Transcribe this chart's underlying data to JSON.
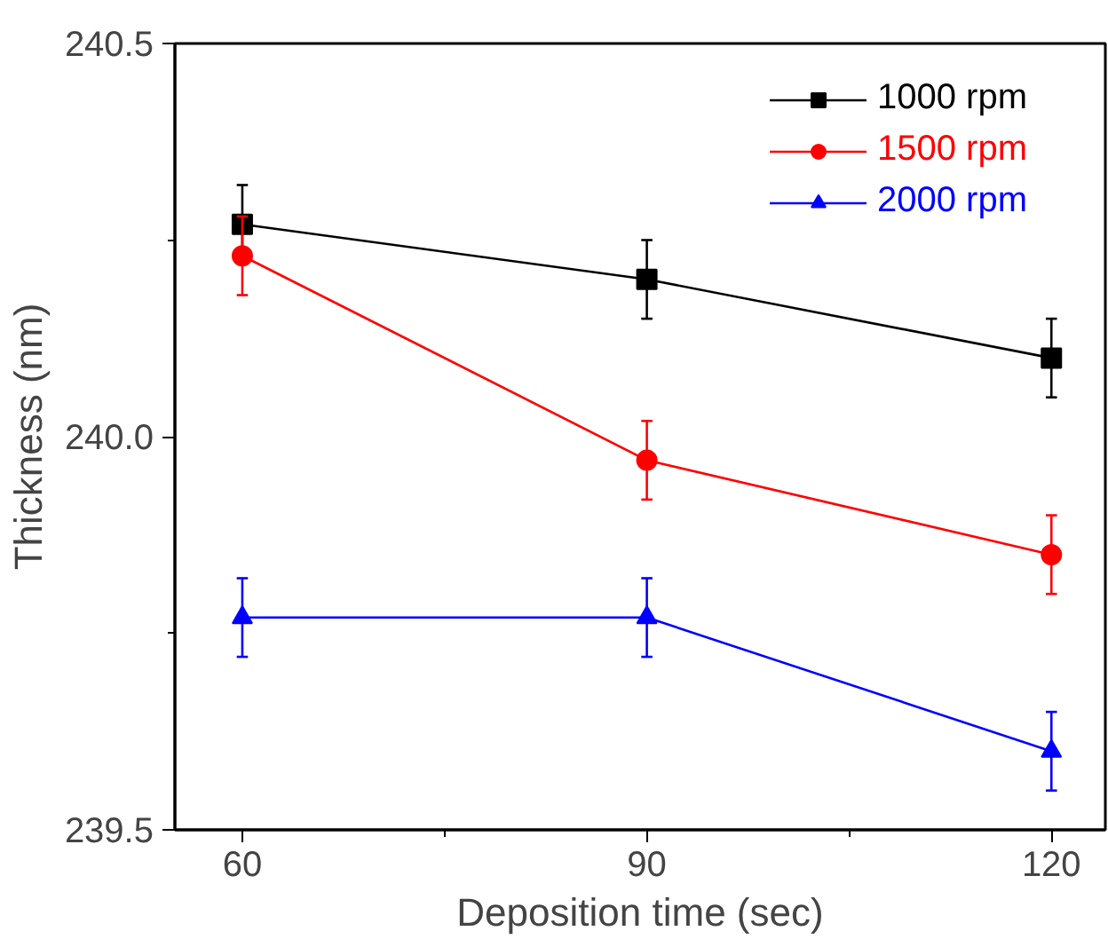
{
  "chart_data": {
    "type": "line",
    "xlabel": "Deposition time (sec)",
    "ylabel": "Thickness (nm)",
    "x": [
      60,
      90,
      120
    ],
    "series": [
      {
        "name": "1000 rpm",
        "color": "#000000",
        "marker": "square",
        "values": [
          240.27,
          240.2,
          240.1
        ],
        "errors": [
          0.05,
          0.05,
          0.05
        ]
      },
      {
        "name": "1500 rpm",
        "color": "#ff0000",
        "marker": "circle",
        "values": [
          240.23,
          239.97,
          239.85
        ],
        "errors": [
          0.05,
          0.05,
          0.05
        ]
      },
      {
        "name": "2000 rpm",
        "color": "#0000ff",
        "marker": "triangle",
        "values": [
          239.77,
          239.77,
          239.6
        ],
        "errors": [
          0.05,
          0.05,
          0.05
        ]
      }
    ],
    "xlim": [
      55,
      124
    ],
    "ylim": [
      239.5,
      240.5
    ],
    "xticks": [
      60,
      {
        "value": 75,
        "label": null
      },
      90,
      {
        "value": 105,
        "label": null
      },
      120
    ],
    "yticks": [
      {
        "value": 239.5,
        "label": "239.5"
      },
      {
        "value": 239.75,
        "label": null
      },
      {
        "value": 240.0,
        "label": "240.0"
      },
      {
        "value": 240.25,
        "label": null
      },
      {
        "value": 240.5,
        "label": "240.5"
      }
    ],
    "grid": false,
    "legend": "top right",
    "line_style": "solid"
  }
}
